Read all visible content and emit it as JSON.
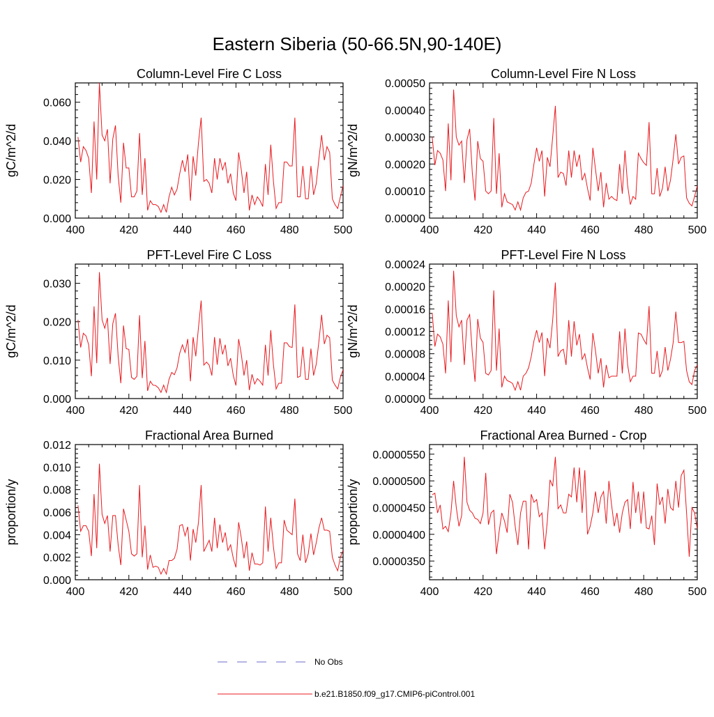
{
  "page": {
    "title": "Eastern Siberia (50-66.5N,90-140E)"
  },
  "legend": {
    "placement": "bottom-center",
    "entries": [
      {
        "label": "No Obs",
        "color": "#6b6bc9",
        "style": "dashed"
      },
      {
        "label": "b.e21.B1850.f09_g17.CMIP6-piControl.001",
        "color": "#e8191e",
        "style": "solid"
      }
    ]
  },
  "chart_data": [
    {
      "type": "line",
      "title": "Column-Level Fire C Loss",
      "xlabel": "",
      "ylabel": "gC/m^2/d",
      "xlim": [
        400,
        500
      ],
      "ylim": [
        0,
        0.07
      ],
      "xticks": [
        400,
        420,
        440,
        460,
        480,
        500
      ],
      "yticks": [
        0.0,
        0.02,
        0.04,
        0.06
      ],
      "ytick_labels": [
        "0.000",
        "0.020",
        "0.040",
        "0.060"
      ],
      "x_start": 401,
      "series": [
        {
          "color": "#e8191e",
          "values": [
            0.042,
            0.029,
            0.037,
            0.035,
            0.031,
            0.013,
            0.05,
            0.02,
            0.07,
            0.043,
            0.04,
            0.046,
            0.018,
            0.041,
            0.048,
            0.022,
            0.008,
            0.039,
            0.026,
            0.026,
            0.011,
            0.011,
            0.014,
            0.044,
            0.012,
            0.031,
            0.004,
            0.009,
            0.007,
            0.007,
            0.006,
            0.003,
            0.007,
            0.003,
            0.011,
            0.016,
            0.012,
            0.015,
            0.023,
            0.03,
            0.024,
            0.033,
            0.009,
            0.032,
            0.022,
            0.039,
            0.052,
            0.019,
            0.02,
            0.018,
            0.013,
            0.031,
            0.02,
            0.031,
            0.025,
            0.029,
            0.018,
            0.023,
            0.013,
            0.009,
            0.034,
            0.025,
            0.013,
            0.024,
            0.004,
            0.012,
            0.007,
            0.011,
            0.009,
            0.006,
            0.028,
            0.012,
            0.038,
            0.019,
            0.005,
            0.008,
            0.008,
            0.029,
            0.029,
            0.027,
            0.027,
            0.052,
            0.011,
            0.011,
            0.027,
            0.01,
            0.01,
            0.027,
            0.012,
            0.018,
            0.031,
            0.043,
            0.03,
            0.037,
            0.034,
            0.01,
            0.007,
            0.005,
            0.011,
            0.017
          ]
        }
      ]
    },
    {
      "type": "line",
      "title": "Column-Level Fire N Loss",
      "xlabel": "",
      "ylabel": "gN/m^2/d",
      "xlim": [
        400,
        500
      ],
      "ylim": [
        0,
        0.0005
      ],
      "xticks": [
        400,
        420,
        440,
        460,
        480,
        500
      ],
      "yticks": [
        0.0,
        0.0001,
        0.0002,
        0.0003,
        0.0004,
        0.0005
      ],
      "ytick_labels": [
        "0.00000",
        "0.00010",
        "0.00020",
        "0.00030",
        "0.00040",
        "0.00050"
      ],
      "x_start": 401,
      "series": [
        {
          "color": "#e8191e",
          "values": [
            0.0003,
            0.000196,
            0.00025,
            0.00024,
            0.000215,
            0.0001,
            0.00035,
            0.00014,
            0.000475,
            0.0003,
            0.00027,
            0.000285,
            0.00013,
            0.00029,
            0.00033,
            0.000165,
            6.5e-05,
            0.000285,
            0.00022,
            0.00021,
            0.0001,
            9e-05,
            0.0001,
            0.00037,
            9e-05,
            0.00024,
            4e-05,
            9e-05,
            6e-05,
            5.5e-05,
            5e-05,
            3e-05,
            6e-05,
            3e-05,
            7.5e-05,
            9.5e-05,
            0.0001,
            0.00013,
            0.0002,
            0.00026,
            0.00021,
            0.00025,
            8e-05,
            0.000225,
            0.00019,
            0.0003,
            0.000415,
            0.00015,
            0.00017,
            0.000165,
            0.00012,
            0.00025,
            0.00015,
            0.00025,
            0.00019,
            0.000235,
            0.00014,
            0.000165,
            0.00011,
            6.5e-05,
            0.00026,
            0.00018,
            0.0001,
            0.00017,
            4e-05,
            0.00013,
            7e-05,
            8e-05,
            7e-05,
            6.5e-05,
            0.0002,
            9e-05,
            0.00025,
            0.00012,
            5e-05,
            8e-05,
            7e-05,
            0.00024,
            0.00022,
            0.000205,
            0.000195,
            0.000355,
            9e-05,
            9e-05,
            0.000185,
            8e-05,
            0.00011,
            0.00019,
            0.0001,
            0.00014,
            0.00022,
            0.00031,
            0.0002,
            0.000225,
            0.00023,
            7.5e-05,
            5.5e-05,
            4.5e-05,
            8e-05,
            0.00012
          ]
        }
      ]
    },
    {
      "type": "line",
      "title": "PFT-Level Fire C Loss",
      "xlabel": "",
      "ylabel": "gC/m^2/d",
      "xlim": [
        400,
        500
      ],
      "ylim": [
        0,
        0.035
      ],
      "xticks": [
        400,
        420,
        440,
        460,
        480,
        500
      ],
      "yticks": [
        0.0,
        0.01,
        0.02,
        0.03
      ],
      "ytick_labels": [
        "0.000",
        "0.010",
        "0.020",
        "0.030"
      ],
      "x_start": 401,
      "series": [
        {
          "color": "#e8191e",
          "values": [
            0.0205,
            0.0133,
            0.017,
            0.0163,
            0.014,
            0.0058,
            0.024,
            0.0092,
            0.0329,
            0.0205,
            0.0183,
            0.021,
            0.009,
            0.0195,
            0.0222,
            0.011,
            0.004,
            0.019,
            0.013,
            0.0128,
            0.0055,
            0.005,
            0.0058,
            0.0217,
            0.0053,
            0.015,
            0.002,
            0.0045,
            0.0035,
            0.0034,
            0.0028,
            0.0016,
            0.0035,
            0.0016,
            0.005,
            0.0068,
            0.0062,
            0.008,
            0.0118,
            0.014,
            0.012,
            0.0155,
            0.0045,
            0.016,
            0.011,
            0.0185,
            0.0255,
            0.0087,
            0.0095,
            0.0087,
            0.006,
            0.016,
            0.0088,
            0.0157,
            0.0115,
            0.014,
            0.0085,
            0.0105,
            0.006,
            0.0034,
            0.0155,
            0.0115,
            0.006,
            0.01,
            0.0022,
            0.0063,
            0.0038,
            0.0052,
            0.0045,
            0.0035,
            0.014,
            0.006,
            0.0178,
            0.0088,
            0.0025,
            0.004,
            0.004,
            0.0145,
            0.0145,
            0.0135,
            0.0133,
            0.0245,
            0.0055,
            0.0058,
            0.0135,
            0.005,
            0.005,
            0.013,
            0.006,
            0.009,
            0.015,
            0.0218,
            0.0142,
            0.0165,
            0.0158,
            0.0048,
            0.0035,
            0.0025,
            0.0055,
            0.0075
          ]
        }
      ]
    },
    {
      "type": "line",
      "title": "PFT-Level Fire N Loss",
      "xlabel": "",
      "ylabel": "gN/m^2/d",
      "xlim": [
        400,
        500
      ],
      "ylim": [
        0,
        0.00024
      ],
      "xticks": [
        400,
        420,
        440,
        460,
        480,
        500
      ],
      "yticks": [
        0.0,
        4e-05,
        8e-05,
        0.00012,
        0.00016,
        0.0002,
        0.00024
      ],
      "ytick_labels": [
        "0.00000",
        "0.00004",
        "0.00008",
        "0.00012",
        "0.00016",
        "0.00020",
        "0.00024"
      ],
      "x_start": 401,
      "series": [
        {
          "color": "#e8191e",
          "values": [
            0.000153,
            9.3e-05,
            0.000115,
            0.00011,
            9.7e-05,
            4.5e-05,
            0.000175,
            6.5e-05,
            0.000228,
            0.000148,
            0.000128,
            0.00014,
            6e-05,
            0.00014,
            0.00015,
            8e-05,
            3e-05,
            0.000142,
            0.000108,
            0.0001,
            4.5e-05,
            4.2e-05,
            5e-05,
            0.000193,
            5e-05,
            0.000125,
            2e-05,
            4e-05,
            3.2e-05,
            3e-05,
            2.7e-05,
            1.5e-05,
            3e-05,
            1.5e-05,
            4e-05,
            4.5e-05,
            5.5e-05,
            7.5e-05,
            0.000103,
            0.000122,
            0.0001,
            0.000118,
            4e-05,
            0.000108,
            9e-05,
            0.00014,
            0.000207,
            7.5e-05,
            8.5e-05,
            8.8e-05,
            6e-05,
            0.00014,
            7.5e-05,
            0.000138,
            9.5e-05,
            0.000115,
            7e-05,
            8e-05,
            5.5e-05,
            3.4e-05,
            0.000117,
            8.5e-05,
            4.5e-05,
            7.2e-05,
            2e-05,
            6e-05,
            3.7e-05,
            4e-05,
            4e-05,
            4e-05,
            0.00012,
            4.5e-05,
            0.000125,
            6e-05,
            3e-05,
            4e-05,
            4e-05,
            0.000117,
            0.000115,
            0.000105,
            9.7e-05,
            0.000165,
            4.5e-05,
            4.5e-05,
            8.5e-05,
            3.8e-05,
            5e-05,
            9.2e-05,
            5e-05,
            7e-05,
            0.0001,
            0.000155,
            0.0001,
            0.0001,
            0.000102,
            5e-05,
            3e-05,
            2.5e-05,
            5e-05,
            6e-05
          ]
        }
      ]
    },
    {
      "type": "line",
      "title": "Fractional Area Burned",
      "xlabel": "",
      "ylabel": "proportion/y",
      "xlim": [
        400,
        500
      ],
      "ylim": [
        0,
        0.012
      ],
      "xticks": [
        400,
        420,
        440,
        460,
        480,
        500
      ],
      "yticks": [
        0.0,
        0.002,
        0.004,
        0.006,
        0.008,
        0.01,
        0.012
      ],
      "ytick_labels": [
        "0.000",
        "0.002",
        "0.004",
        "0.006",
        "0.008",
        "0.010",
        "0.012"
      ],
      "x_start": 401,
      "series": [
        {
          "color": "#e8191e",
          "values": [
            0.0066,
            0.0043,
            0.0048,
            0.0048,
            0.0043,
            0.0021,
            0.0076,
            0.0028,
            0.0103,
            0.0058,
            0.005,
            0.0057,
            0.0025,
            0.0057,
            0.0057,
            0.0031,
            0.0013,
            0.0063,
            0.0053,
            0.0043,
            0.0023,
            0.0021,
            0.0023,
            0.0084,
            0.002,
            0.0048,
            0.0009,
            0.0022,
            0.0011,
            0.0012,
            0.0011,
            0.0005,
            0.001,
            0.0005,
            0.0017,
            0.0017,
            0.0019,
            0.0027,
            0.0048,
            0.0049,
            0.0039,
            0.0047,
            0.0017,
            0.0045,
            0.0033,
            0.0051,
            0.0084,
            0.0025,
            0.003,
            0.0035,
            0.0025,
            0.0055,
            0.0028,
            0.0049,
            0.0033,
            0.0042,
            0.0026,
            0.0031,
            0.0019,
            0.0011,
            0.0051,
            0.0037,
            0.0019,
            0.0034,
            0.0008,
            0.0024,
            0.0014,
            0.0014,
            0.0013,
            0.0015,
            0.0065,
            0.0025,
            0.0055,
            0.0029,
            0.001,
            0.0015,
            0.0015,
            0.0053,
            0.0044,
            0.0042,
            0.004,
            0.0072,
            0.0023,
            0.0017,
            0.004,
            0.0015,
            0.0023,
            0.0041,
            0.0022,
            0.0033,
            0.0046,
            0.0055,
            0.0044,
            0.0044,
            0.0043,
            0.002,
            0.0013,
            0.0008,
            0.002,
            0.0026
          ]
        }
      ]
    },
    {
      "type": "line",
      "title": "Fractional Area Burned - Crop",
      "xlabel": "",
      "ylabel": "proportion/y",
      "xlim": [
        400,
        500
      ],
      "ylim": [
        3.15e-05,
        5.68e-05
      ],
      "xticks": [
        400,
        420,
        440,
        460,
        480,
        500
      ],
      "yticks": [
        3.5e-05,
        4e-05,
        4.5e-05,
        5e-05,
        5.5e-05
      ],
      "ytick_labels": [
        "0.0000350",
        "0.0000400",
        "0.0000450",
        "0.0000500",
        "0.0000550"
      ],
      "x_start": 401,
      "series": [
        {
          "color": "#e8191e",
          "values": [
            4.74e-05,
            4.77e-05,
            4.4e-05,
            4.55e-05,
            4.1e-05,
            4.15e-05,
            4.05e-05,
            4.4e-05,
            5e-05,
            4.5e-05,
            4.15e-05,
            4.35e-05,
            5.45e-05,
            4.6e-05,
            4.45e-05,
            4.4e-05,
            4.3e-05,
            4.28e-05,
            4.2e-05,
            4.4e-05,
            5.15e-05,
            4.18e-05,
            4.4e-05,
            4.45e-05,
            3.63e-05,
            4.05e-05,
            4.4e-05,
            4.25e-05,
            4.03e-05,
            4.75e-05,
            4.6e-05,
            4.15e-05,
            3.8e-05,
            4.4e-05,
            4.62e-05,
            4.62e-05,
            3.72e-05,
            4.75e-05,
            4.6e-05,
            4.65e-05,
            4.33e-05,
            4.4e-05,
            3.72e-05,
            4.25e-05,
            5.02e-05,
            4.9e-05,
            5.45e-05,
            4.48e-05,
            4.55e-05,
            4.4e-05,
            4.4e-05,
            4.75e-05,
            4.7e-05,
            5.25e-05,
            4.6e-05,
            5.25e-05,
            4.4e-05,
            5.2e-05,
            4e-05,
            4.15e-05,
            4.4e-05,
            4.8e-05,
            4.4e-05,
            4.7e-05,
            4.8e-05,
            4.2e-05,
            5e-05,
            4.55e-05,
            4.15e-05,
            4.4e-05,
            4.03e-05,
            4.4e-05,
            4.6e-05,
            4.65e-05,
            4.1e-05,
            4.98e-05,
            4.4e-05,
            4.8e-05,
            4.2e-05,
            4.8e-05,
            4.12e-05,
            4.1e-05,
            4.35e-05,
            3.8e-05,
            4.95e-05,
            4.55e-05,
            4.7e-05,
            4.2e-05,
            4.85e-05,
            4.5e-05,
            4.45e-05,
            5e-05,
            4.5e-05,
            5.1e-05,
            5.2e-05,
            4.4e-05,
            3.58e-05,
            4.5e-05,
            4.4e-05,
            4.1e-05,
            4.9e-05,
            4.5e-05
          ]
        }
      ]
    }
  ]
}
